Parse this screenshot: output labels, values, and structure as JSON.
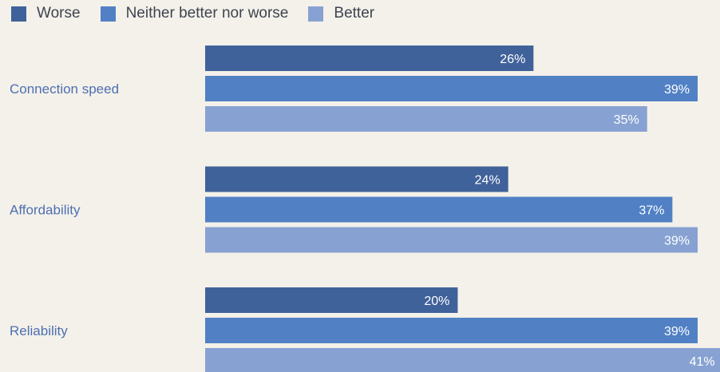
{
  "colors": {
    "background": "#f4f1ea",
    "category_label": "#4e6fb1",
    "value_label": "#ffffff"
  },
  "chart_data": {
    "type": "bar",
    "orientation": "horizontal",
    "value_format": "{v}%",
    "xlim": [
      0,
      41
    ],
    "legend_position": "top-left",
    "grid": false,
    "categories": [
      "Connection speed",
      "Affordability",
      "Reliability"
    ],
    "series": [
      {
        "name": "Worse",
        "color": "#40629a",
        "values": [
          26,
          24,
          20
        ]
      },
      {
        "name": "Neither better nor worse",
        "color": "#5181c4",
        "values": [
          39,
          37,
          39
        ]
      },
      {
        "name": "Better",
        "color": "#87a2d2",
        "values": [
          35,
          39,
          41
        ]
      }
    ]
  }
}
